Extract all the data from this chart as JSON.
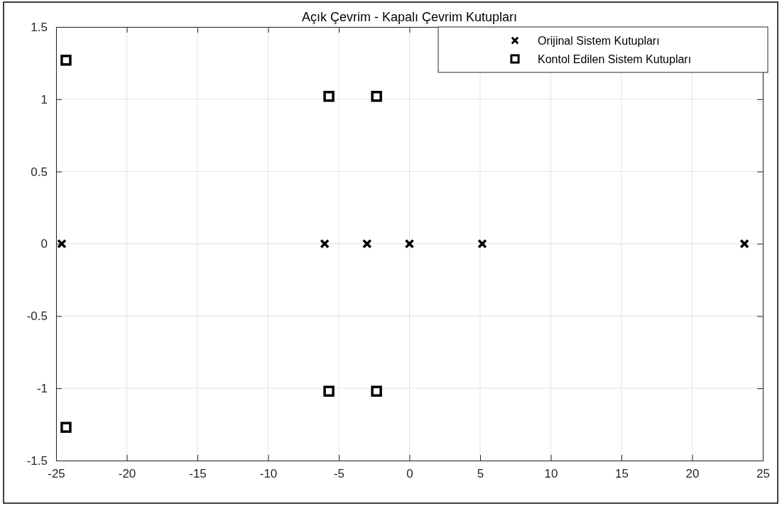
{
  "chart_data": {
    "type": "scatter",
    "title": "Açık Çevrim - Kapalı Çevrim Kutupları",
    "xlim": [
      -25,
      25
    ],
    "xticks": [
      -25,
      -20,
      -15,
      -10,
      -5,
      0,
      5,
      10,
      15,
      20,
      25
    ],
    "ylim": [
      -1.5,
      1.5
    ],
    "yticks": [
      -1.5,
      -1,
      -0.5,
      0,
      0.5,
      1,
      1.5
    ],
    "grid": true,
    "legend": "top right",
    "series": [
      {
        "name": "Orijinal Sistem Kutupları",
        "color": "#000000",
        "marker": "cross",
        "x": [
          -24.6,
          -6,
          -3,
          0,
          5.15,
          23.7
        ],
        "values": [
          0,
          0,
          0,
          0,
          0,
          0
        ]
      },
      {
        "name": "Kontol Edilen Sistem Kutupları",
        "color": "#000000",
        "marker": "square",
        "x": [
          -24.3,
          -5.7,
          -2.33,
          -24.3,
          -5.7,
          -2.33
        ],
        "values": [
          1.27,
          1.02,
          1.02,
          -1.27,
          -1.02,
          -1.02
        ]
      }
    ]
  }
}
